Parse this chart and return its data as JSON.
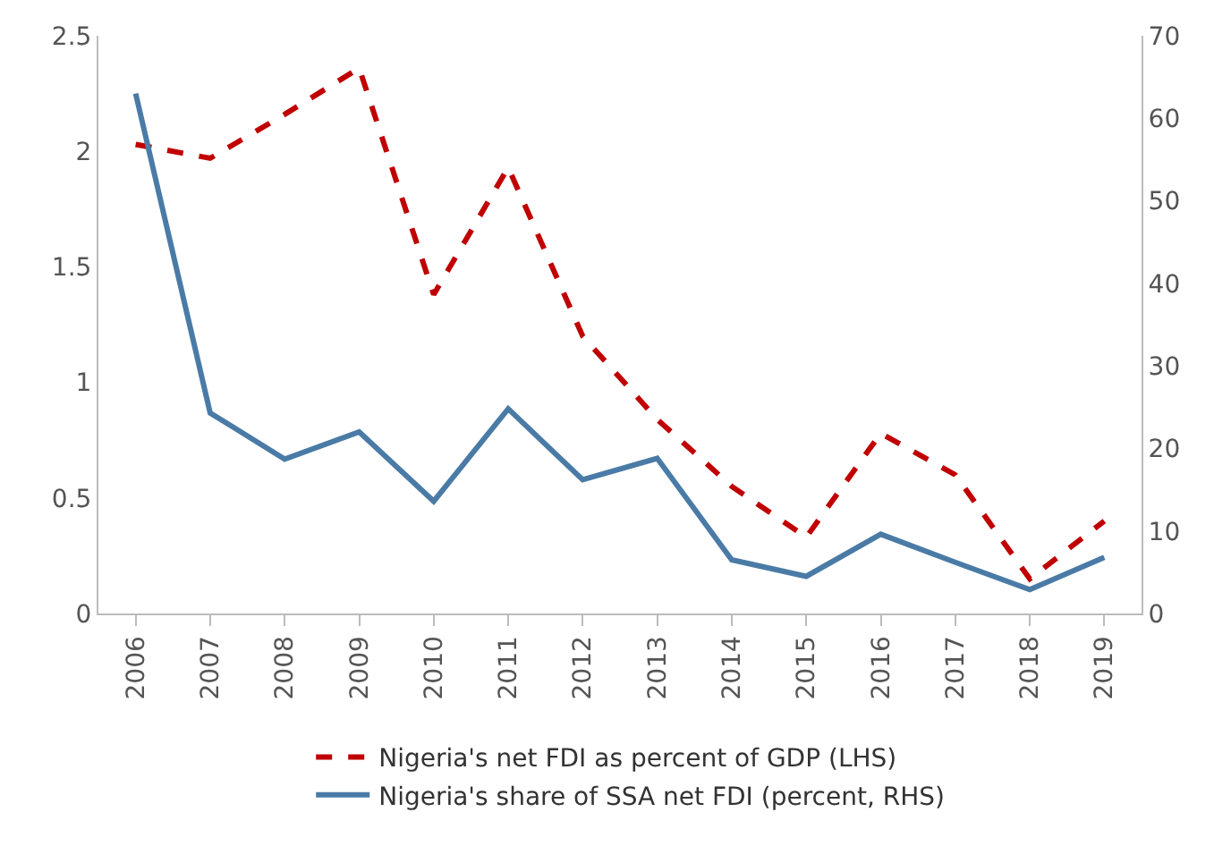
{
  "chart_data": {
    "type": "line",
    "categories": [
      "2006",
      "2007",
      "2008",
      "2009",
      "2010",
      "2011",
      "2012",
      "2013",
      "2014",
      "2015",
      "2016",
      "2017",
      "2018",
      "2019"
    ],
    "series": [
      {
        "name": "Nigeria's net FDI as percent of GDP (LHS)",
        "color": "#c00000",
        "line_style": "dashed",
        "values": [
          2.03,
          1.97,
          2.16,
          2.36,
          1.38,
          1.93,
          1.2,
          0.84,
          0.55,
          0.33,
          0.78,
          0.6,
          0.15,
          0.4
        ]
      },
      {
        "name": "Nigeria's share of SSA net FDI (percent, RHS)",
        "color": "#4a7ba6",
        "line_style": "solid",
        "axis": "y2",
        "values": [
          63,
          24.3,
          18.7,
          22,
          13.6,
          24.8,
          16.2,
          18.8,
          6.5,
          4.5,
          9.6,
          6.2,
          2.9,
          6.8
        ]
      }
    ],
    "ylim": [
      0,
      2.5
    ],
    "yticks": [
      0,
      0.5,
      1,
      1.5,
      2,
      2.5
    ],
    "y2lim": [
      0,
      70
    ],
    "y2ticks": [
      0,
      10,
      20,
      30,
      40,
      50,
      60,
      70
    ],
    "grid": false,
    "legend": "bottom"
  }
}
